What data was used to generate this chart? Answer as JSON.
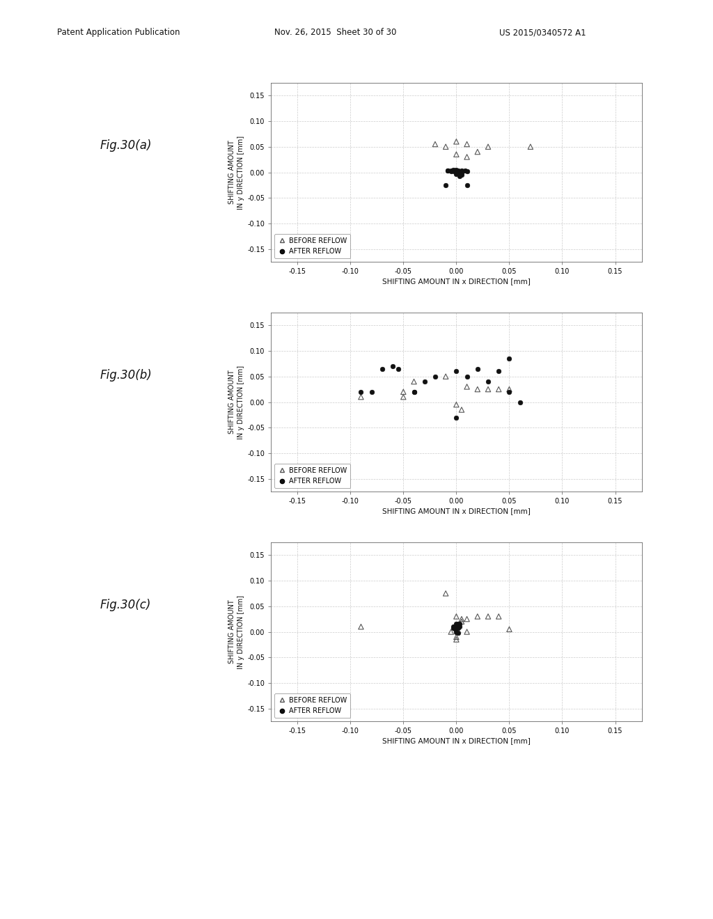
{
  "header_left": "Patent Application Publication",
  "header_mid": "Nov. 26, 2015  Sheet 30 of 30",
  "header_right": "US 2015/0340572 A1",
  "fig_labels": [
    "Fig.30(a)",
    "Fig.30(b)",
    "Fig.30(c)"
  ],
  "xlabel": "SHIFTING AMOUNT IN x DIRECTION [mm]",
  "ylabel_line1": "SHIFTING AMOUNT",
  "ylabel_line2": "IN y DIRECTION [mm]",
  "xlim": [
    -0.175,
    0.175
  ],
  "ylim": [
    -0.175,
    0.175
  ],
  "xticks": [
    -0.15,
    -0.1,
    -0.05,
    0.0,
    0.05,
    0.1,
    0.15
  ],
  "yticks": [
    -0.15,
    -0.1,
    -0.05,
    0.0,
    0.05,
    0.1,
    0.15
  ],
  "legend_before": "BEFORE REFLOW",
  "legend_after": "AFTER REFLOW",
  "plot_a": {
    "before_x": [
      -0.02,
      -0.01,
      0.0,
      0.01,
      0.02,
      0.0,
      0.01,
      0.03,
      0.07
    ],
    "before_y": [
      0.055,
      0.05,
      0.06,
      0.055,
      0.04,
      0.035,
      0.03,
      0.05,
      0.05
    ],
    "after_x": [
      0.0,
      0.0,
      0.005,
      -0.005,
      0.003,
      0.008,
      -0.003,
      0.002,
      -0.008,
      0.01,
      -0.01,
      0.005,
      0.01,
      0.0,
      -0.005,
      -0.008,
      0.003,
      0.0,
      0.005,
      -0.002
    ],
    "after_y": [
      0.002,
      0.005,
      0.003,
      0.002,
      -0.008,
      0.003,
      0.005,
      0.003,
      0.003,
      -0.025,
      -0.025,
      0.0,
      0.002,
      -0.003,
      0.003,
      0.003,
      -0.003,
      0.0,
      -0.005,
      0.002
    ]
  },
  "plot_b": {
    "before_x": [
      -0.09,
      -0.05,
      -0.05,
      -0.04,
      -0.01,
      0.0,
      0.005,
      0.01,
      0.02,
      0.03,
      0.04,
      0.05
    ],
    "before_y": [
      0.01,
      0.01,
      0.02,
      0.04,
      0.05,
      -0.005,
      -0.015,
      0.03,
      0.025,
      0.025,
      0.025,
      0.025
    ],
    "after_x": [
      -0.09,
      -0.08,
      -0.07,
      -0.06,
      -0.055,
      -0.04,
      -0.04,
      -0.03,
      -0.02,
      0.0,
      0.0,
      0.01,
      0.02,
      0.03,
      0.04,
      0.05,
      0.05,
      0.06
    ],
    "after_y": [
      0.02,
      0.02,
      0.065,
      0.07,
      0.065,
      0.02,
      0.02,
      0.04,
      0.05,
      -0.03,
      0.06,
      0.05,
      0.065,
      0.04,
      0.06,
      0.085,
      0.02,
      0.0
    ]
  },
  "plot_c": {
    "before_x": [
      -0.09,
      -0.01,
      0.0,
      0.005,
      0.01,
      0.02,
      0.03,
      0.04,
      0.05,
      0.01,
      0.005,
      -0.005,
      0.0,
      0.0
    ],
    "before_y": [
      0.01,
      0.075,
      0.03,
      0.025,
      0.025,
      0.03,
      0.03,
      0.03,
      0.005,
      0.0,
      0.02,
      0.0,
      -0.01,
      -0.015
    ],
    "after_x": [
      0.0,
      0.003,
      -0.003,
      0.002,
      -0.002,
      0.001,
      0.003,
      -0.003,
      0.002,
      0.0,
      -0.001,
      0.002,
      -0.002
    ],
    "after_y": [
      0.015,
      0.015,
      0.01,
      0.015,
      0.01,
      0.012,
      0.01,
      0.008,
      0.008,
      0.0,
      0.005,
      -0.002,
      0.008
    ]
  },
  "bg_color": "#ffffff",
  "plot_bg": "#ffffff",
  "marker_before_color": "#555555",
  "marker_after_color": "#111111",
  "grid_color": "#cccccc",
  "text_color": "#111111",
  "spine_color": "#666666"
}
